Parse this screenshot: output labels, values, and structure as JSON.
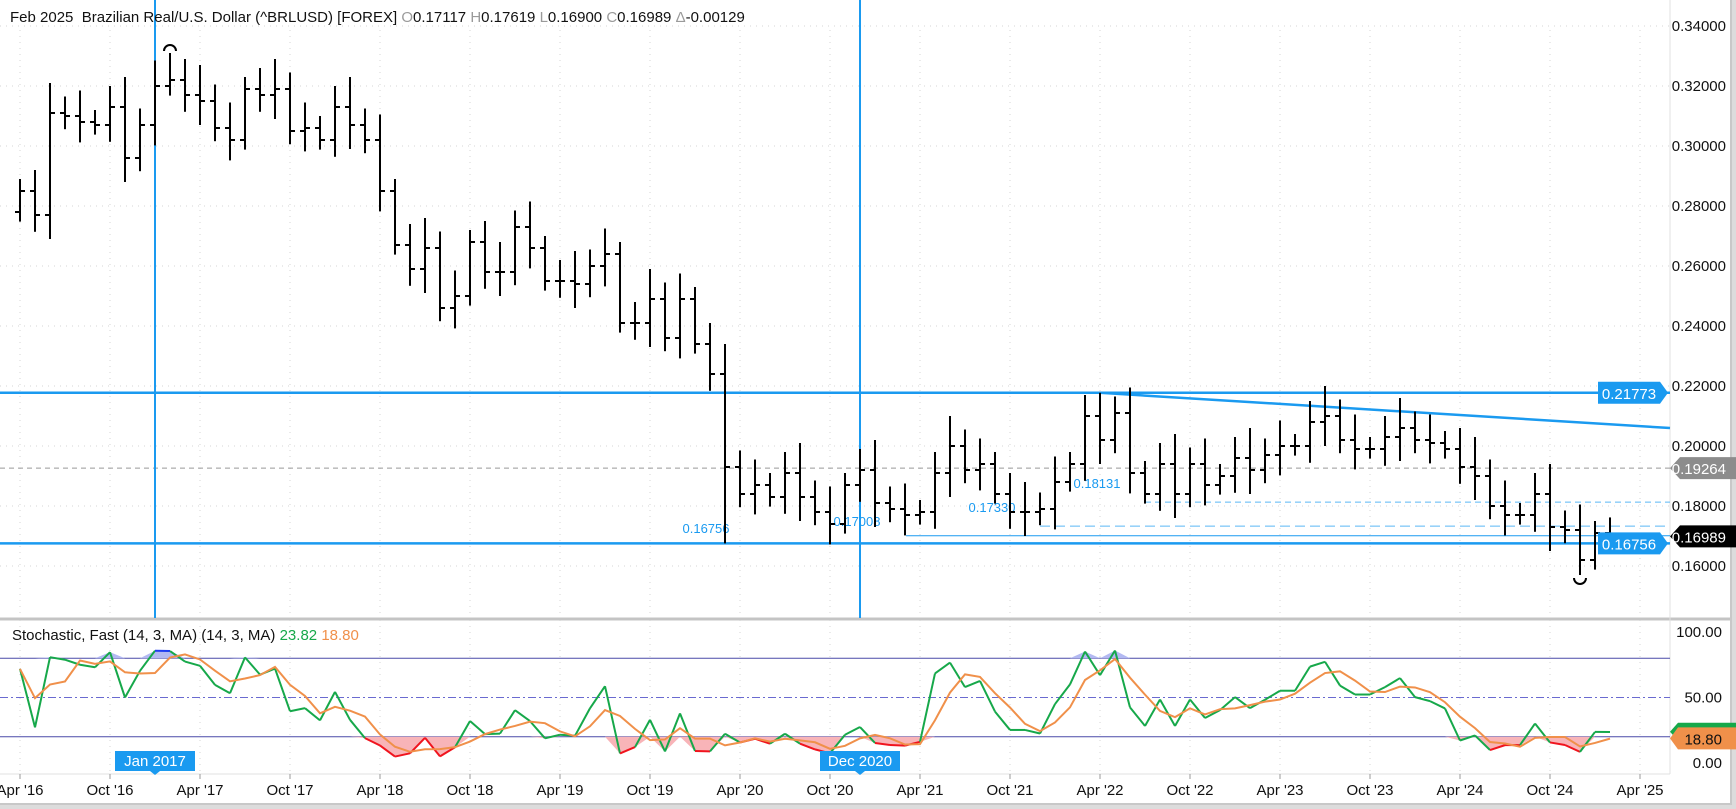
{
  "header": {
    "period": "Feb 2025",
    "instrument": "Brazilian Real/U.S. Dollar (^BRLUSD) [FOREX]",
    "o_key": "O",
    "o": "0.17117",
    "h_key": "H",
    "h": "0.17619",
    "l_key": "L",
    "l": "0.16900",
    "c_key": "C",
    "c": "0.16989",
    "d_key": "Δ",
    "d": "-0.00129"
  },
  "stochastic": {
    "label": "Stochastic, Fast (14, 3, MA) (14, 3, MA)",
    "k": "23.82",
    "d": "18.80",
    "axis": [
      "100.00",
      "50.00",
      "0.00"
    ]
  },
  "price_axis": [
    "0.34000",
    "0.32000",
    "0.30000",
    "0.28000",
    "0.26000",
    "0.24000",
    "0.22000",
    "0.20000",
    "0.18000",
    "0.16000"
  ],
  "price_badges": {
    "resistance": "0.21773",
    "prior": "0.19264",
    "last": "0.16989",
    "support": "0.16756"
  },
  "annotations": [
    "0.16756",
    "0.17008",
    "0.17330",
    "0.18131"
  ],
  "time_axis": [
    "Apr '16",
    "Oct '16",
    "Apr '17",
    "Oct '17",
    "Apr '18",
    "Oct '18",
    "Apr '19",
    "Oct '19",
    "Apr '20",
    "Oct '20",
    "Apr '21",
    "Oct '21",
    "Apr '22",
    "Oct '22",
    "Apr '23",
    "Oct '23",
    "Apr '24",
    "Oct '24",
    "Apr '25"
  ],
  "crosshair_dates": [
    "Jan 2017",
    "Dec 2020"
  ],
  "colors": {
    "accent": "#1a9af0",
    "up_fill": "#b3b9f2",
    "down_fill": "#f8b4b8",
    "k": "#16a84a",
    "d": "#f0904a",
    "last": "#000000",
    "prior": "#8c8c8c"
  },
  "chart_data": {
    "type": "ohlc-bar",
    "start": "Apr 2016",
    "interval": "month",
    "ylim": [
      0.15,
      0.345
    ],
    "closes": [
      0.285,
      0.277,
      0.311,
      0.31,
      0.308,
      0.307,
      0.313,
      0.296,
      0.307,
      0.32,
      0.322,
      0.317,
      0.315,
      0.306,
      0.302,
      0.319,
      0.317,
      0.319,
      0.305,
      0.306,
      0.302,
      0.313,
      0.307,
      0.302,
      0.285,
      0.267,
      0.259,
      0.266,
      0.246,
      0.25,
      0.268,
      0.258,
      0.258,
      0.273,
      0.266,
      0.255,
      0.255,
      0.254,
      0.26,
      0.264,
      0.241,
      0.241,
      0.249,
      0.236,
      0.249,
      0.234,
      0.224,
      0.193,
      0.184,
      0.187,
      0.183,
      0.191,
      0.183,
      0.178,
      0.174,
      0.187,
      0.192,
      0.181,
      0.179,
      0.177,
      0.178,
      0.191,
      0.2,
      0.192,
      0.194,
      0.184,
      0.178,
      0.178,
      0.179,
      0.188,
      0.194,
      0.21,
      0.202,
      0.211,
      0.191,
      0.184,
      0.194,
      0.184,
      0.194,
      0.187,
      0.19,
      0.196,
      0.192,
      0.197,
      0.2,
      0.2,
      0.208,
      0.21,
      0.202,
      0.199,
      0.199,
      0.203,
      0.206,
      0.202,
      0.201,
      0.199,
      0.193,
      0.19,
      0.18,
      0.177,
      0.177,
      0.184,
      0.173,
      0.172,
      0.162,
      0.171,
      0.16989
    ],
    "levels": {
      "resistance": 0.21773,
      "support": 0.16756,
      "prior": 0.19264,
      "dashed": [
        0.18131,
        0.1733
      ],
      "solid": 0.17008
    }
  }
}
